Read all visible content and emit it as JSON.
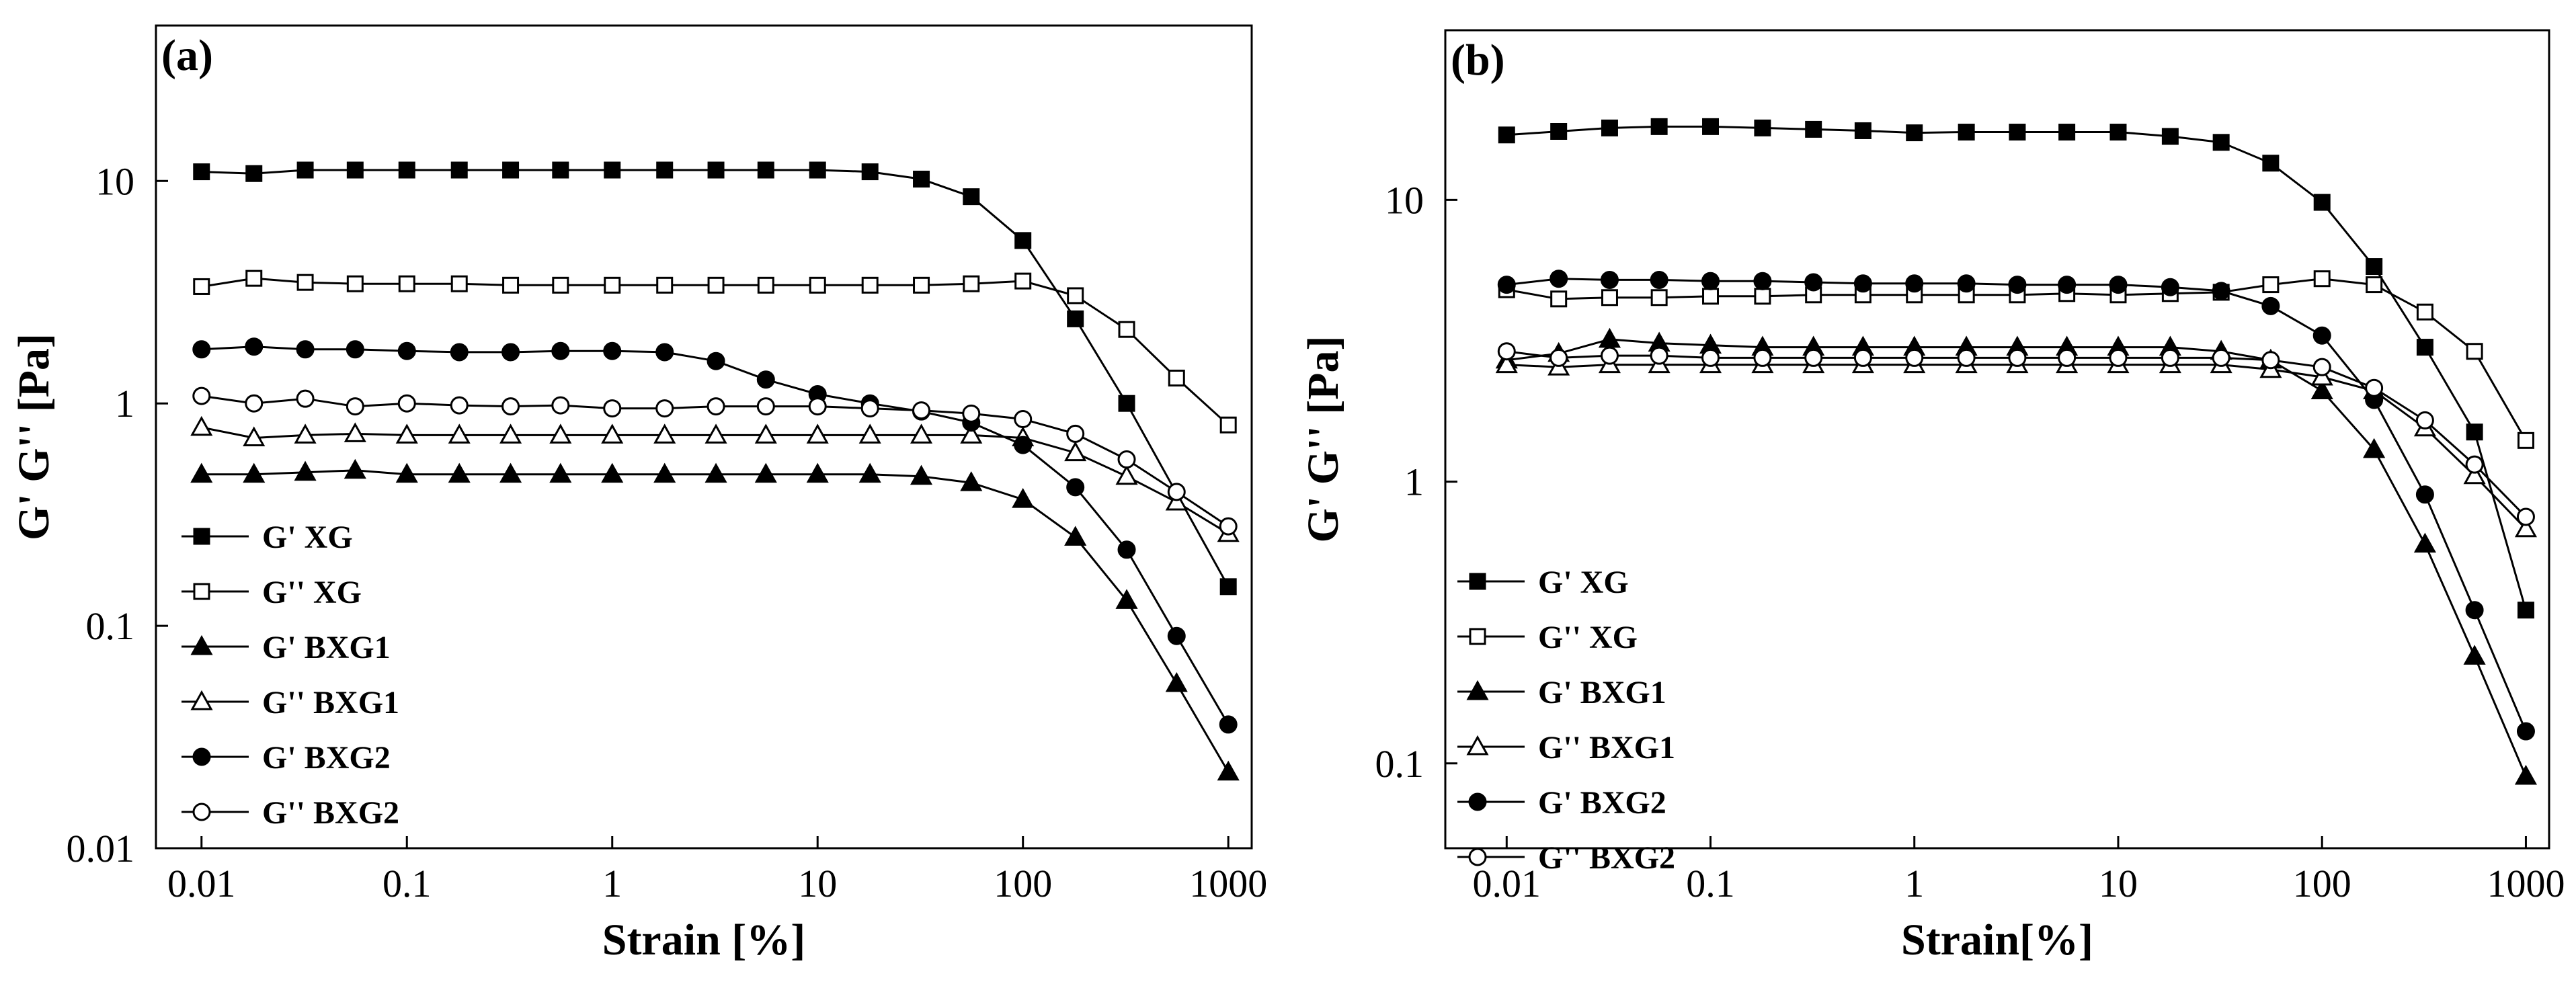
{
  "chart_data": [
    {
      "type": "line",
      "panel_label": "(a)",
      "xlabel": "Strain [%]",
      "ylabel": "G'  G'' [Pa]",
      "xscale": "log",
      "yscale": "log",
      "xlim": [
        0.006,
        1300
      ],
      "ylim": [
        0.01,
        50
      ],
      "x_ticks": [
        0.01,
        0.1,
        1,
        10,
        100,
        1000
      ],
      "x_tick_labels": [
        "0.01",
        "0.1",
        "1",
        "10",
        "100",
        "1000"
      ],
      "y_ticks": [
        0.01,
        0.1,
        1,
        10
      ],
      "y_tick_labels": [
        "0.01",
        "0.1",
        "1",
        "10"
      ],
      "legend_position": "bottom-left",
      "x": [
        0.01,
        0.018,
        0.032,
        0.056,
        0.1,
        0.18,
        0.32,
        0.56,
        1,
        1.8,
        3.2,
        5.6,
        10,
        18,
        32,
        56,
        100,
        180,
        320,
        560,
        1000
      ],
      "series": [
        {
          "name": "G'  XG",
          "marker": "square",
          "filled": true,
          "values": [
            11,
            10.8,
            11.2,
            11.2,
            11.2,
            11.2,
            11.2,
            11.2,
            11.2,
            11.2,
            11.2,
            11.2,
            11.2,
            11.0,
            10.2,
            8.5,
            5.4,
            2.4,
            1.0,
            null,
            0.15
          ]
        },
        {
          "name": "G''  XG",
          "marker": "square",
          "filled": false,
          "values": [
            3.35,
            3.65,
            3.5,
            3.45,
            3.45,
            3.45,
            3.4,
            3.4,
            3.4,
            3.4,
            3.4,
            3.4,
            3.4,
            3.4,
            3.4,
            3.45,
            3.55,
            3.05,
            2.15,
            1.3,
            0.8
          ]
        },
        {
          "name": "G'  BXG1",
          "marker": "triangle",
          "filled": true,
          "values": [
            0.48,
            0.48,
            0.49,
            0.5,
            0.48,
            0.48,
            0.48,
            0.48,
            0.48,
            0.48,
            0.48,
            0.48,
            0.48,
            0.48,
            0.47,
            0.44,
            0.37,
            0.25,
            0.13,
            0.055,
            0.022
          ]
        },
        {
          "name": "G''  BXG1",
          "marker": "triangle",
          "filled": false,
          "values": [
            0.78,
            0.7,
            0.72,
            0.73,
            0.72,
            0.72,
            0.72,
            0.72,
            0.72,
            0.72,
            0.72,
            0.72,
            0.72,
            0.72,
            0.72,
            0.72,
            0.7,
            0.6,
            0.47,
            0.36,
            0.26
          ]
        },
        {
          "name": "G'  BXG2",
          "marker": "circle",
          "filled": true,
          "values": [
            1.75,
            1.8,
            1.75,
            1.75,
            1.72,
            1.7,
            1.7,
            1.72,
            1.72,
            1.7,
            1.55,
            1.28,
            1.1,
            1.0,
            0.92,
            0.82,
            0.65,
            0.42,
            0.22,
            0.09,
            0.036
          ]
        },
        {
          "name": "G''  BXG2",
          "marker": "circle",
          "filled": false,
          "values": [
            1.08,
            1.0,
            1.05,
            0.97,
            1.0,
            0.98,
            0.97,
            0.98,
            0.95,
            0.95,
            0.97,
            0.97,
            0.97,
            0.95,
            0.93,
            0.9,
            0.85,
            0.73,
            0.56,
            0.4,
            0.28
          ]
        }
      ]
    },
    {
      "type": "line",
      "panel_label": "(b)",
      "xlabel": "Strain[%]",
      "ylabel": "G'  G'' [Pa]",
      "xscale": "log",
      "yscale": "log",
      "xlim": [
        0.005,
        1300
      ],
      "ylim": [
        0.05,
        40
      ],
      "x_ticks": [
        0.01,
        0.1,
        1,
        10,
        100,
        1000
      ],
      "x_tick_labels": [
        "0.01",
        "0.1",
        "1",
        "10",
        "100",
        "1000"
      ],
      "y_ticks": [
        0.1,
        1,
        10
      ],
      "y_tick_labels": [
        "0.1",
        "1",
        "10"
      ],
      "legend_position": "bottom-left",
      "x": [
        0.01,
        0.018,
        0.032,
        0.056,
        0.1,
        0.18,
        0.32,
        0.56,
        1,
        1.8,
        3.2,
        5.6,
        10,
        18,
        32,
        56,
        100,
        180,
        320,
        560,
        1000
      ],
      "series": [
        {
          "name": "G'  XG",
          "marker": "square",
          "filled": true,
          "values": [
            17,
            17.5,
            18,
            18.2,
            18.2,
            18,
            17.8,
            17.6,
            17.3,
            17.4,
            17.4,
            17.4,
            17.4,
            16.8,
            16.0,
            13.5,
            9.8,
            5.8,
            3.0,
            1.5,
            0.35
          ]
        },
        {
          "name": "G''  XG",
          "marker": "square",
          "filled": false,
          "values": [
            4.8,
            4.45,
            4.5,
            4.5,
            4.55,
            4.55,
            4.6,
            4.6,
            4.6,
            4.6,
            4.6,
            4.65,
            4.6,
            4.65,
            4.7,
            5.0,
            5.25,
            5.0,
            4.0,
            2.9,
            1.4
          ]
        },
        {
          "name": "G'  BXG1",
          "marker": "triangle",
          "filled": true,
          "values": [
            2.7,
            2.85,
            3.2,
            3.1,
            3.05,
            3.0,
            3.0,
            3.0,
            3.0,
            3.0,
            3.0,
            3.0,
            3.0,
            3.0,
            2.9,
            2.7,
            2.1,
            1.3,
            0.6,
            0.24,
            0.09
          ]
        },
        {
          "name": "G''  BXG1",
          "marker": "triangle",
          "filled": false,
          "values": [
            2.6,
            2.55,
            2.6,
            2.6,
            2.6,
            2.6,
            2.6,
            2.6,
            2.6,
            2.6,
            2.6,
            2.6,
            2.6,
            2.6,
            2.6,
            2.5,
            2.35,
            2.1,
            1.55,
            1.05,
            0.68
          ]
        },
        {
          "name": "G'  BXG2",
          "marker": "circle",
          "filled": true,
          "values": [
            5.0,
            5.25,
            5.2,
            5.2,
            5.15,
            5.15,
            5.1,
            5.05,
            5.05,
            5.05,
            5.0,
            5.0,
            5.0,
            4.9,
            4.75,
            4.2,
            3.3,
            1.95,
            0.9,
            0.35,
            0.13
          ]
        },
        {
          "name": "G''  BXG2",
          "marker": "circle",
          "filled": false,
          "values": [
            2.9,
            2.75,
            2.8,
            2.8,
            2.75,
            2.75,
            2.75,
            2.75,
            2.75,
            2.75,
            2.75,
            2.75,
            2.75,
            2.75,
            2.75,
            2.7,
            2.55,
            2.15,
            1.65,
            1.15,
            0.75
          ]
        }
      ]
    }
  ]
}
